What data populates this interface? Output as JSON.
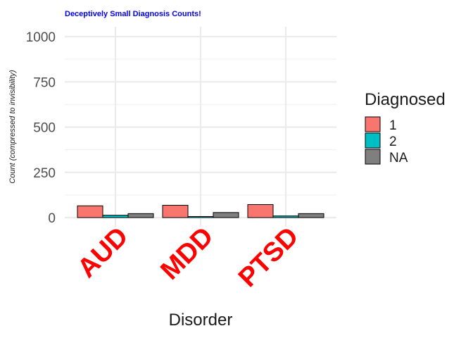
{
  "chart_data": {
    "type": "bar",
    "title": "Deceptively Small Diagnosis Counts!",
    "xlabel": "Disorder",
    "ylabel": "Count (compressed to invisibility)",
    "categories": [
      "AUD",
      "MDD",
      "PTSD"
    ],
    "ylim": [
      0,
      1050
    ],
    "yticks": [
      0,
      250,
      500,
      750,
      1000
    ],
    "yticks_labels": [
      "0",
      "250",
      "500",
      "750",
      "1000"
    ],
    "grid": true,
    "legend": {
      "title": "Diagnosed",
      "position": "right"
    },
    "series": [
      {
        "name": "1",
        "color": "#F8766D",
        "values": [
          65,
          68,
          72
        ]
      },
      {
        "name": "2",
        "color": "#00BFC4",
        "values": [
          13,
          6,
          9
        ]
      },
      {
        "name": "NA",
        "color": "#7F7F7F",
        "values": [
          22,
          28,
          22
        ]
      }
    ]
  }
}
